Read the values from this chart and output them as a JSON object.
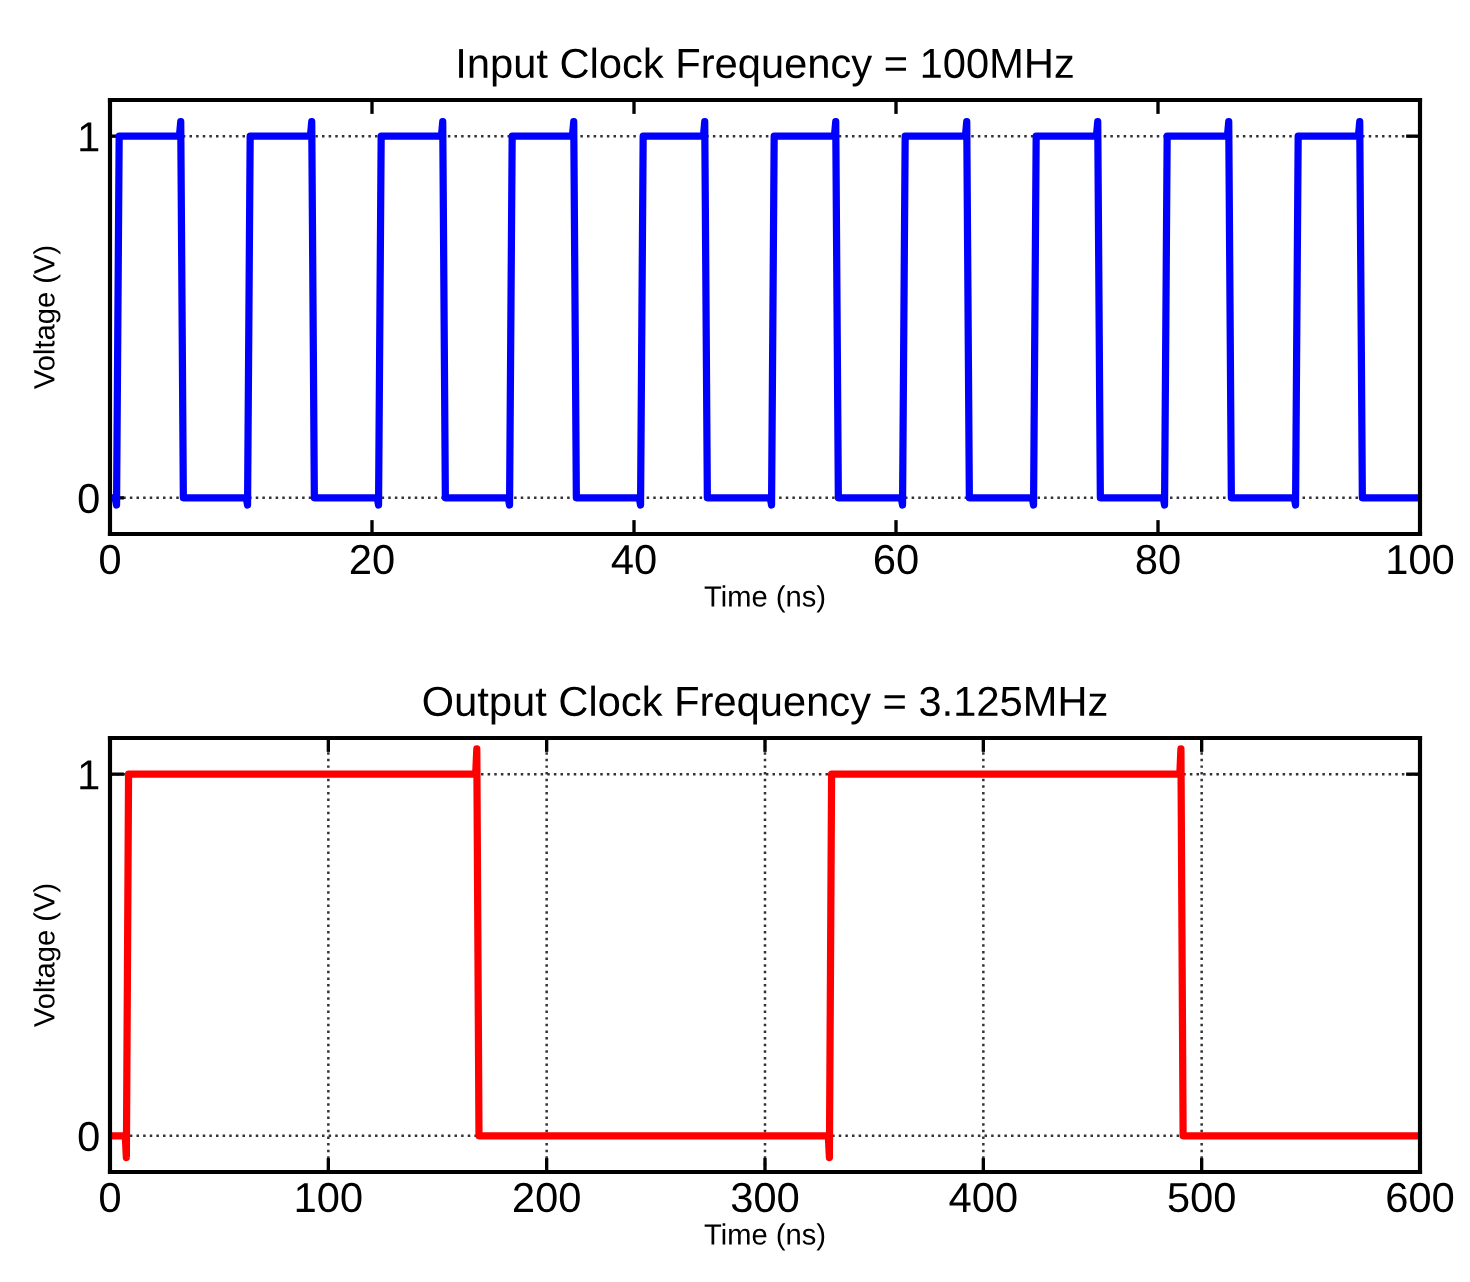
{
  "chart_data": [
    {
      "type": "line",
      "title": "Input Clock Frequency = 100MHz",
      "xlabel": "Time (ns)",
      "ylabel": "Voltage (V)",
      "xlim": [
        0,
        100
      ],
      "xticks": [
        0,
        20,
        40,
        60,
        80,
        100
      ],
      "ylim": [
        -0.1,
        1.1
      ],
      "yticks": [
        0,
        1
      ],
      "grid": "y",
      "line_style": "solid",
      "series": [
        {
          "color": "#0000ff",
          "x": [
            0,
            0.4,
            0.5,
            0.7,
            5.3,
            5.4,
            5.6,
            10.4,
            10.5,
            10.7,
            15.3,
            15.4,
            15.6,
            20.4,
            20.5,
            20.7,
            25.3,
            25.4,
            25.6,
            30.4,
            30.5,
            30.7,
            35.3,
            35.4,
            35.6,
            40.4,
            40.5,
            40.7,
            45.3,
            45.4,
            45.6,
            50.4,
            50.5,
            50.7,
            55.3,
            55.4,
            55.6,
            60.4,
            60.5,
            60.7,
            65.3,
            65.4,
            65.6,
            70.4,
            70.5,
            70.7,
            75.3,
            75.4,
            75.6,
            80.4,
            80.5,
            80.7,
            85.3,
            85.4,
            85.6,
            90.4,
            90.5,
            90.7,
            95.3,
            95.4,
            95.6,
            100
          ],
          "values": [
            0,
            0,
            -0.02,
            1,
            1,
            1.04,
            0,
            0,
            -0.02,
            1,
            1,
            1.04,
            0,
            0,
            -0.02,
            1,
            1,
            1.04,
            0,
            0,
            -0.02,
            1,
            1,
            1.04,
            0,
            0,
            -0.02,
            1,
            1,
            1.04,
            0,
            0,
            -0.02,
            1,
            1,
            1.04,
            0,
            0,
            -0.02,
            1,
            1,
            1.04,
            0,
            0,
            -0.02,
            1,
            1,
            1.04,
            0,
            0,
            -0.02,
            1,
            1,
            1.04,
            0,
            0,
            -0.02,
            1,
            1,
            1.04,
            0,
            0
          ]
        }
      ]
    },
    {
      "type": "line",
      "title": "Output Clock Frequency = 3.125MHz",
      "xlabel": "Time (ns)",
      "ylabel": "Voltage (V)",
      "xlim": [
        0,
        600
      ],
      "xticks": [
        0,
        100,
        200,
        300,
        400,
        500,
        600
      ],
      "ylim": [
        -0.1,
        1.1
      ],
      "yticks": [
        0,
        1
      ],
      "grid": true,
      "line_style": "solid",
      "series": [
        {
          "color": "#ff0000",
          "x": [
            0,
            7,
            7.5,
            8.5,
            167.5,
            168,
            169,
            329,
            329.5,
            330.5,
            490,
            490.5,
            491.5,
            600
          ],
          "values": [
            0,
            0,
            -0.06,
            1,
            1,
            1.07,
            0,
            0,
            -0.06,
            1,
            1,
            1.07,
            0,
            0
          ]
        }
      ]
    }
  ]
}
